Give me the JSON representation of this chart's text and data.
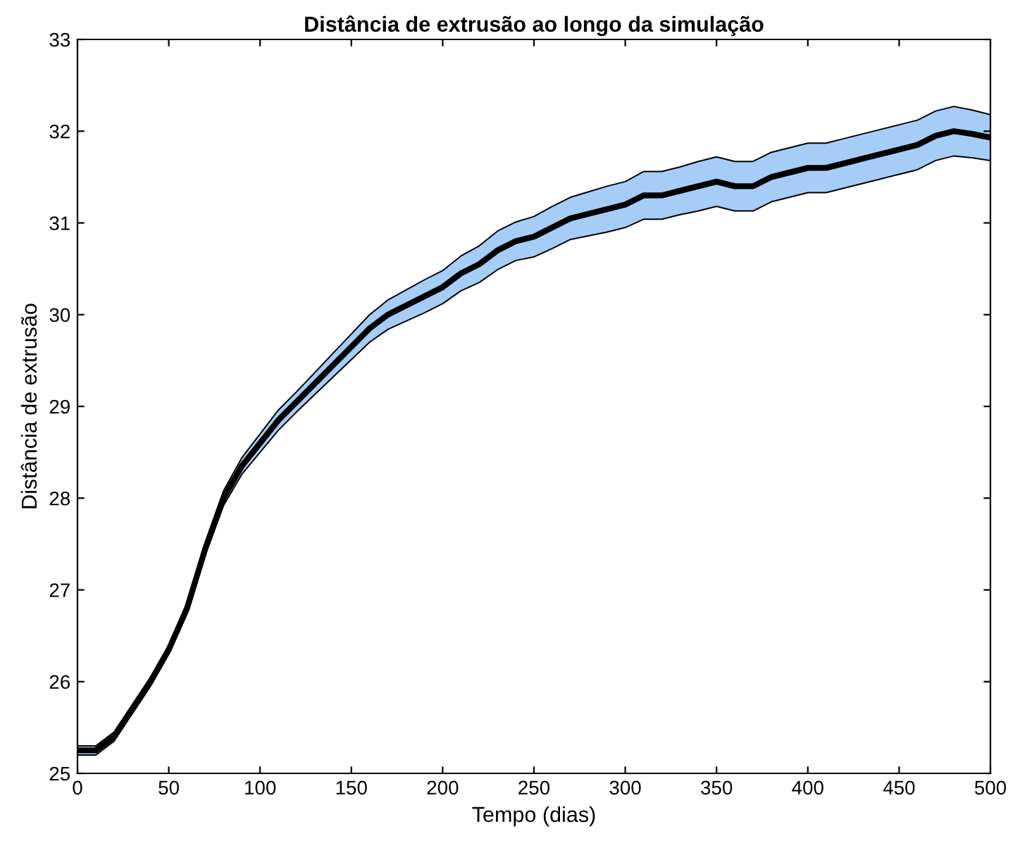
{
  "chart_data": {
    "type": "line",
    "title": "Distância de extrusão ao longo da simulação",
    "xlabel": "Tempo (dias)",
    "ylabel": "Distância de extrusão",
    "x": [
      0,
      10,
      20,
      30,
      40,
      50,
      60,
      70,
      80,
      90,
      100,
      110,
      120,
      130,
      140,
      150,
      160,
      170,
      180,
      190,
      200,
      210,
      220,
      230,
      240,
      250,
      260,
      270,
      280,
      290,
      300,
      310,
      320,
      330,
      340,
      350,
      360,
      370,
      380,
      390,
      400,
      410,
      420,
      430,
      440,
      450,
      460,
      470,
      480,
      490,
      500
    ],
    "series": [
      {
        "color": "#000000",
        "values": [
          25.25,
          25.25,
          25.4,
          25.7,
          26.0,
          26.35,
          26.8,
          27.45,
          28.0,
          28.35,
          28.6,
          28.85,
          29.05,
          29.25,
          29.45,
          29.65,
          29.85,
          30.0,
          30.1,
          30.2,
          30.3,
          30.45,
          30.55,
          30.7,
          30.8,
          30.85,
          30.95,
          31.05,
          31.1,
          31.15,
          31.2,
          31.3,
          31.3,
          31.35,
          31.4,
          31.45,
          31.4,
          31.4,
          31.5,
          31.55,
          31.6,
          31.6,
          31.65,
          31.7,
          31.75,
          31.8,
          31.85,
          31.95,
          32.0,
          31.97,
          31.93
        ],
        "lower": [
          25.2,
          25.2,
          25.35,
          25.65,
          25.95,
          26.3,
          26.74,
          27.38,
          27.92,
          28.26,
          28.5,
          28.74,
          28.94,
          29.13,
          29.32,
          29.51,
          29.7,
          29.84,
          29.93,
          30.02,
          30.12,
          30.26,
          30.35,
          30.49,
          30.59,
          30.63,
          30.72,
          30.82,
          30.86,
          30.9,
          30.95,
          31.04,
          31.04,
          31.09,
          31.13,
          31.18,
          31.13,
          31.13,
          31.23,
          31.28,
          31.33,
          31.33,
          31.38,
          31.43,
          31.48,
          31.53,
          31.58,
          31.68,
          31.73,
          31.71,
          31.68
        ],
        "upper": [
          25.3,
          25.3,
          25.45,
          25.75,
          26.05,
          26.4,
          26.86,
          27.52,
          28.08,
          28.44,
          28.7,
          28.96,
          29.16,
          29.37,
          29.58,
          29.79,
          30.0,
          30.16,
          30.27,
          30.38,
          30.48,
          30.64,
          30.75,
          30.91,
          31.01,
          31.07,
          31.18,
          31.28,
          31.34,
          31.4,
          31.45,
          31.56,
          31.56,
          31.61,
          31.67,
          31.72,
          31.67,
          31.67,
          31.77,
          31.82,
          31.87,
          31.87,
          31.92,
          31.97,
          32.02,
          32.07,
          32.12,
          32.22,
          32.27,
          32.23,
          32.18
        ]
      }
    ],
    "xlim": [
      0,
      500
    ],
    "ylim": [
      25,
      33
    ],
    "xticks": [
      0,
      50,
      100,
      150,
      200,
      250,
      300,
      350,
      400,
      450,
      500
    ],
    "yticks": [
      25,
      26,
      27,
      28,
      29,
      30,
      31,
      32,
      33
    ],
    "grid": false,
    "legend": false,
    "line_style": "solid",
    "marker": "none"
  }
}
